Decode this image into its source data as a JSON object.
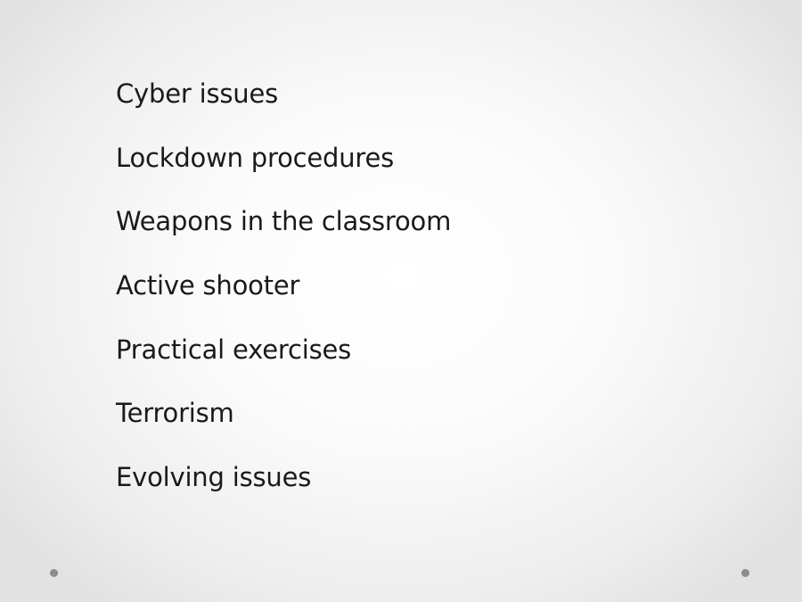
{
  "slide": {
    "bullets": [
      "Cyber issues",
      "Lockdown procedures",
      "Weapons in the classroom",
      "Active shooter",
      "Practical exercises",
      "Terrorism",
      "Evolving issues"
    ]
  },
  "decorations": {
    "dot_color": "#8c8c8c",
    "background_center": "#ffffff",
    "background_edge": "#e2e2e2"
  }
}
